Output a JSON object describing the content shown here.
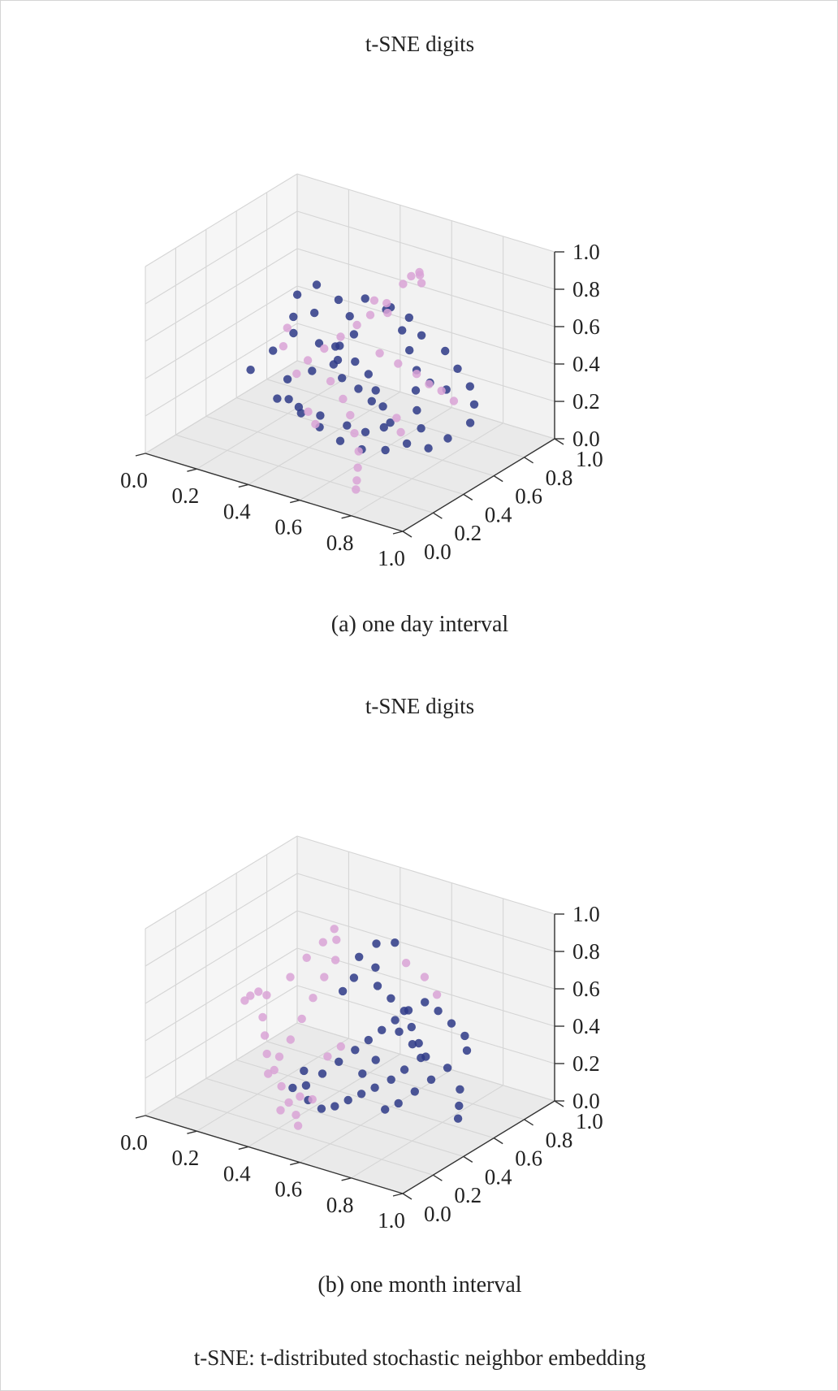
{
  "figure": {
    "footnote": "t-SNE: t-distributed stochastic neighbor embedding"
  },
  "chart_data": [
    {
      "type": "scatter",
      "projection": "3d",
      "title": "t-SNE digits",
      "caption": "(a) one day interval",
      "xlabel": "",
      "ylabel": "",
      "zlabel": "",
      "xlim": [
        0,
        1
      ],
      "ylim": [
        0,
        1
      ],
      "zlim": [
        0,
        1
      ],
      "x_ticks": [
        "0.0",
        "0.2",
        "0.4",
        "0.6",
        "0.8",
        "1.0"
      ],
      "y_ticks": [
        "0.0",
        "0.2",
        "0.4",
        "0.6",
        "0.8",
        "1.0"
      ],
      "z_ticks": [
        "0.0",
        "0.2",
        "0.4",
        "0.6",
        "0.8",
        "1.0"
      ],
      "grid": true,
      "colors": {
        "navy": "#2e3a87",
        "pink": "#d9a3d6",
        "pane": "#f0f0f0",
        "grid": "#d5d5d5"
      },
      "series": [
        {
          "color": "#2e3a87",
          "points": [
            [
              0.22,
              0.32,
              0.38
            ],
            [
              0.26,
              0.4,
              0.46
            ],
            [
              0.31,
              0.45,
              0.55
            ],
            [
              0.35,
              0.52,
              0.64
            ],
            [
              0.42,
              0.56,
              0.72
            ],
            [
              0.5,
              0.6,
              0.74
            ],
            [
              0.57,
              0.62,
              0.7
            ],
            [
              0.62,
              0.64,
              0.6
            ],
            [
              0.66,
              0.62,
              0.52
            ],
            [
              0.7,
              0.6,
              0.44
            ],
            [
              0.72,
              0.56,
              0.36
            ],
            [
              0.76,
              0.5,
              0.3
            ],
            [
              0.8,
              0.46,
              0.24
            ],
            [
              0.78,
              0.4,
              0.18
            ],
            [
              0.72,
              0.36,
              0.14
            ],
            [
              0.64,
              0.34,
              0.12
            ],
            [
              0.58,
              0.3,
              0.16
            ],
            [
              0.5,
              0.3,
              0.2
            ],
            [
              0.44,
              0.28,
              0.26
            ],
            [
              0.38,
              0.3,
              0.3
            ],
            [
              0.34,
              0.36,
              0.36
            ],
            [
              0.4,
              0.42,
              0.4
            ],
            [
              0.46,
              0.46,
              0.44
            ],
            [
              0.52,
              0.5,
              0.46
            ],
            [
              0.56,
              0.52,
              0.4
            ],
            [
              0.6,
              0.5,
              0.34
            ],
            [
              0.64,
              0.48,
              0.28
            ],
            [
              0.68,
              0.46,
              0.22
            ],
            [
              0.48,
              0.56,
              0.56
            ],
            [
              0.44,
              0.6,
              0.62
            ],
            [
              0.54,
              0.7,
              0.66
            ],
            [
              0.6,
              0.72,
              0.62
            ],
            [
              0.66,
              0.7,
              0.56
            ],
            [
              0.74,
              0.72,
              0.5
            ],
            [
              0.8,
              0.7,
              0.44
            ],
            [
              0.86,
              0.68,
              0.38
            ],
            [
              0.9,
              0.64,
              0.32
            ],
            [
              0.92,
              0.58,
              0.26
            ],
            [
              0.88,
              0.5,
              0.2
            ],
            [
              0.84,
              0.44,
              0.16
            ],
            [
              0.3,
              0.36,
              0.24
            ],
            [
              0.36,
              0.4,
              0.2
            ],
            [
              0.42,
              0.44,
              0.16
            ],
            [
              0.5,
              0.48,
              0.12
            ],
            [
              0.56,
              0.5,
              0.1
            ],
            [
              0.62,
              0.52,
              0.14
            ],
            [
              0.38,
              0.5,
              0.5
            ],
            [
              0.42,
              0.54,
              0.48
            ],
            [
              0.46,
              0.5,
              0.52
            ],
            [
              0.5,
              0.42,
              0.5
            ],
            [
              0.54,
              0.38,
              0.44
            ],
            [
              0.58,
              0.42,
              0.38
            ],
            [
              0.62,
              0.44,
              0.32
            ],
            [
              0.28,
              0.5,
              0.6
            ],
            [
              0.26,
              0.56,
              0.68
            ],
            [
              0.3,
              0.62,
              0.72
            ],
            [
              0.74,
              0.62,
              0.38
            ],
            [
              0.78,
              0.66,
              0.34
            ]
          ]
        },
        {
          "color": "#d9a3d6",
          "points": [
            [
              0.62,
              0.7,
              0.86
            ],
            [
              0.64,
              0.72,
              0.88
            ],
            [
              0.66,
              0.7,
              0.84
            ],
            [
              0.63,
              0.74,
              0.85
            ],
            [
              0.6,
              0.68,
              0.82
            ],
            [
              0.56,
              0.64,
              0.72
            ],
            [
              0.52,
              0.6,
              0.66
            ],
            [
              0.48,
              0.58,
              0.6
            ],
            [
              0.44,
              0.54,
              0.54
            ],
            [
              0.4,
              0.5,
              0.48
            ],
            [
              0.36,
              0.46,
              0.42
            ],
            [
              0.34,
              0.42,
              0.36
            ],
            [
              0.46,
              0.44,
              0.36
            ],
            [
              0.52,
              0.42,
              0.3
            ],
            [
              0.56,
              0.4,
              0.24
            ],
            [
              0.6,
              0.36,
              0.18
            ],
            [
              0.64,
              0.32,
              0.12
            ],
            [
              0.66,
              0.28,
              0.06
            ],
            [
              0.68,
              0.24,
              0.02
            ],
            [
              0.7,
              0.2,
              0.0
            ],
            [
              0.58,
              0.56,
              0.5
            ],
            [
              0.64,
              0.58,
              0.46
            ],
            [
              0.7,
              0.6,
              0.42
            ],
            [
              0.76,
              0.58,
              0.4
            ],
            [
              0.82,
              0.56,
              0.4
            ],
            [
              0.88,
              0.54,
              0.38
            ],
            [
              0.3,
              0.4,
              0.5
            ],
            [
              0.28,
              0.46,
              0.56
            ],
            [
              0.5,
              0.66,
              0.7
            ],
            [
              0.54,
              0.68,
              0.64
            ],
            [
              0.42,
              0.36,
              0.22
            ],
            [
              0.46,
              0.34,
              0.18
            ],
            [
              0.74,
              0.4,
              0.3
            ],
            [
              0.78,
              0.36,
              0.26
            ]
          ]
        }
      ]
    },
    {
      "type": "scatter",
      "projection": "3d",
      "title": "t-SNE digits",
      "caption": "(b) one month interval",
      "xlabel": "",
      "ylabel": "",
      "zlabel": "",
      "xlim": [
        0,
        1
      ],
      "ylim": [
        0,
        1
      ],
      "zlim": [
        0,
        1
      ],
      "x_ticks": [
        "0.0",
        "0.2",
        "0.4",
        "0.6",
        "0.8",
        "1.0"
      ],
      "y_ticks": [
        "0.0",
        "0.2",
        "0.4",
        "0.6",
        "0.8",
        "1.0"
      ],
      "z_ticks": [
        "0.0",
        "0.2",
        "0.4",
        "0.6",
        "0.8",
        "1.0"
      ],
      "grid": true,
      "colors": {
        "navy": "#2e3a87",
        "pink": "#d9a3d6",
        "pane": "#f0f0f0",
        "grid": "#d5d5d5"
      },
      "series": [
        {
          "color": "#2e3a87",
          "points": [
            [
              0.5,
              0.56,
              0.78
            ],
            [
              0.54,
              0.6,
              0.72
            ],
            [
              0.56,
              0.58,
              0.64
            ],
            [
              0.6,
              0.6,
              0.58
            ],
            [
              0.64,
              0.62,
              0.52
            ],
            [
              0.68,
              0.6,
              0.46
            ],
            [
              0.72,
              0.58,
              0.4
            ],
            [
              0.74,
              0.56,
              0.34
            ],
            [
              0.7,
              0.52,
              0.28
            ],
            [
              0.66,
              0.5,
              0.22
            ],
            [
              0.62,
              0.46,
              0.18
            ],
            [
              0.58,
              0.44,
              0.14
            ],
            [
              0.54,
              0.42,
              0.1
            ],
            [
              0.5,
              0.4,
              0.06
            ],
            [
              0.46,
              0.38,
              0.04
            ],
            [
              0.42,
              0.36,
              0.08
            ],
            [
              0.4,
              0.38,
              0.14
            ],
            [
              0.44,
              0.42,
              0.2
            ],
            [
              0.48,
              0.46,
              0.26
            ],
            [
              0.52,
              0.5,
              0.32
            ],
            [
              0.56,
              0.52,
              0.38
            ],
            [
              0.6,
              0.54,
              0.44
            ],
            [
              0.64,
              0.56,
              0.5
            ],
            [
              0.68,
              0.58,
              0.56
            ],
            [
              0.72,
              0.62,
              0.6
            ],
            [
              0.76,
              0.64,
              0.56
            ],
            [
              0.8,
              0.66,
              0.5
            ],
            [
              0.84,
              0.68,
              0.44
            ],
            [
              0.86,
              0.66,
              0.38
            ],
            [
              0.82,
              0.6,
              0.3
            ],
            [
              0.78,
              0.56,
              0.24
            ],
            [
              0.74,
              0.52,
              0.18
            ],
            [
              0.7,
              0.48,
              0.12
            ],
            [
              0.66,
              0.46,
              0.08
            ],
            [
              0.88,
              0.58,
              0.22
            ],
            [
              0.9,
              0.54,
              0.16
            ],
            [
              0.92,
              0.5,
              0.12
            ],
            [
              0.46,
              0.52,
              0.6
            ],
            [
              0.48,
              0.56,
              0.66
            ],
            [
              0.52,
              0.64,
              0.82
            ],
            [
              0.58,
              0.66,
              0.84
            ],
            [
              0.62,
              0.62,
              0.4
            ],
            [
              0.66,
              0.64,
              0.34
            ],
            [
              0.7,
              0.66,
              0.28
            ],
            [
              0.56,
              0.48,
              0.22
            ],
            [
              0.6,
              0.5,
              0.3
            ],
            [
              0.38,
              0.4,
              0.2
            ],
            [
              0.36,
              0.36,
              0.12
            ]
          ]
        },
        {
          "color": "#d9a3d6",
          "points": [
            [
              0.16,
              0.42,
              0.5
            ],
            [
              0.18,
              0.44,
              0.52
            ],
            [
              0.15,
              0.4,
              0.48
            ],
            [
              0.2,
              0.46,
              0.5
            ],
            [
              0.22,
              0.4,
              0.42
            ],
            [
              0.24,
              0.38,
              0.34
            ],
            [
              0.26,
              0.36,
              0.26
            ],
            [
              0.3,
              0.34,
              0.2
            ],
            [
              0.34,
              0.32,
              0.14
            ],
            [
              0.38,
              0.3,
              0.08
            ],
            [
              0.42,
              0.28,
              0.04
            ],
            [
              0.44,
              0.26,
              0.0
            ],
            [
              0.28,
              0.48,
              0.62
            ],
            [
              0.32,
              0.52,
              0.72
            ],
            [
              0.36,
              0.56,
              0.8
            ],
            [
              0.38,
              0.6,
              0.86
            ],
            [
              0.4,
              0.58,
              0.82
            ],
            [
              0.42,
              0.54,
              0.74
            ],
            [
              0.4,
              0.5,
              0.66
            ],
            [
              0.38,
              0.46,
              0.56
            ],
            [
              0.36,
              0.42,
              0.46
            ],
            [
              0.34,
              0.38,
              0.36
            ],
            [
              0.32,
              0.34,
              0.28
            ],
            [
              0.3,
              0.3,
              0.2
            ],
            [
              0.46,
              0.42,
              0.3
            ],
            [
              0.5,
              0.44,
              0.36
            ],
            [
              0.46,
              0.32,
              0.12
            ],
            [
              0.4,
              0.34,
              0.1
            ],
            [
              0.36,
              0.28,
              0.04
            ],
            [
              0.6,
              0.7,
              0.72
            ],
            [
              0.66,
              0.72,
              0.66
            ],
            [
              0.72,
              0.7,
              0.6
            ]
          ]
        }
      ]
    }
  ]
}
